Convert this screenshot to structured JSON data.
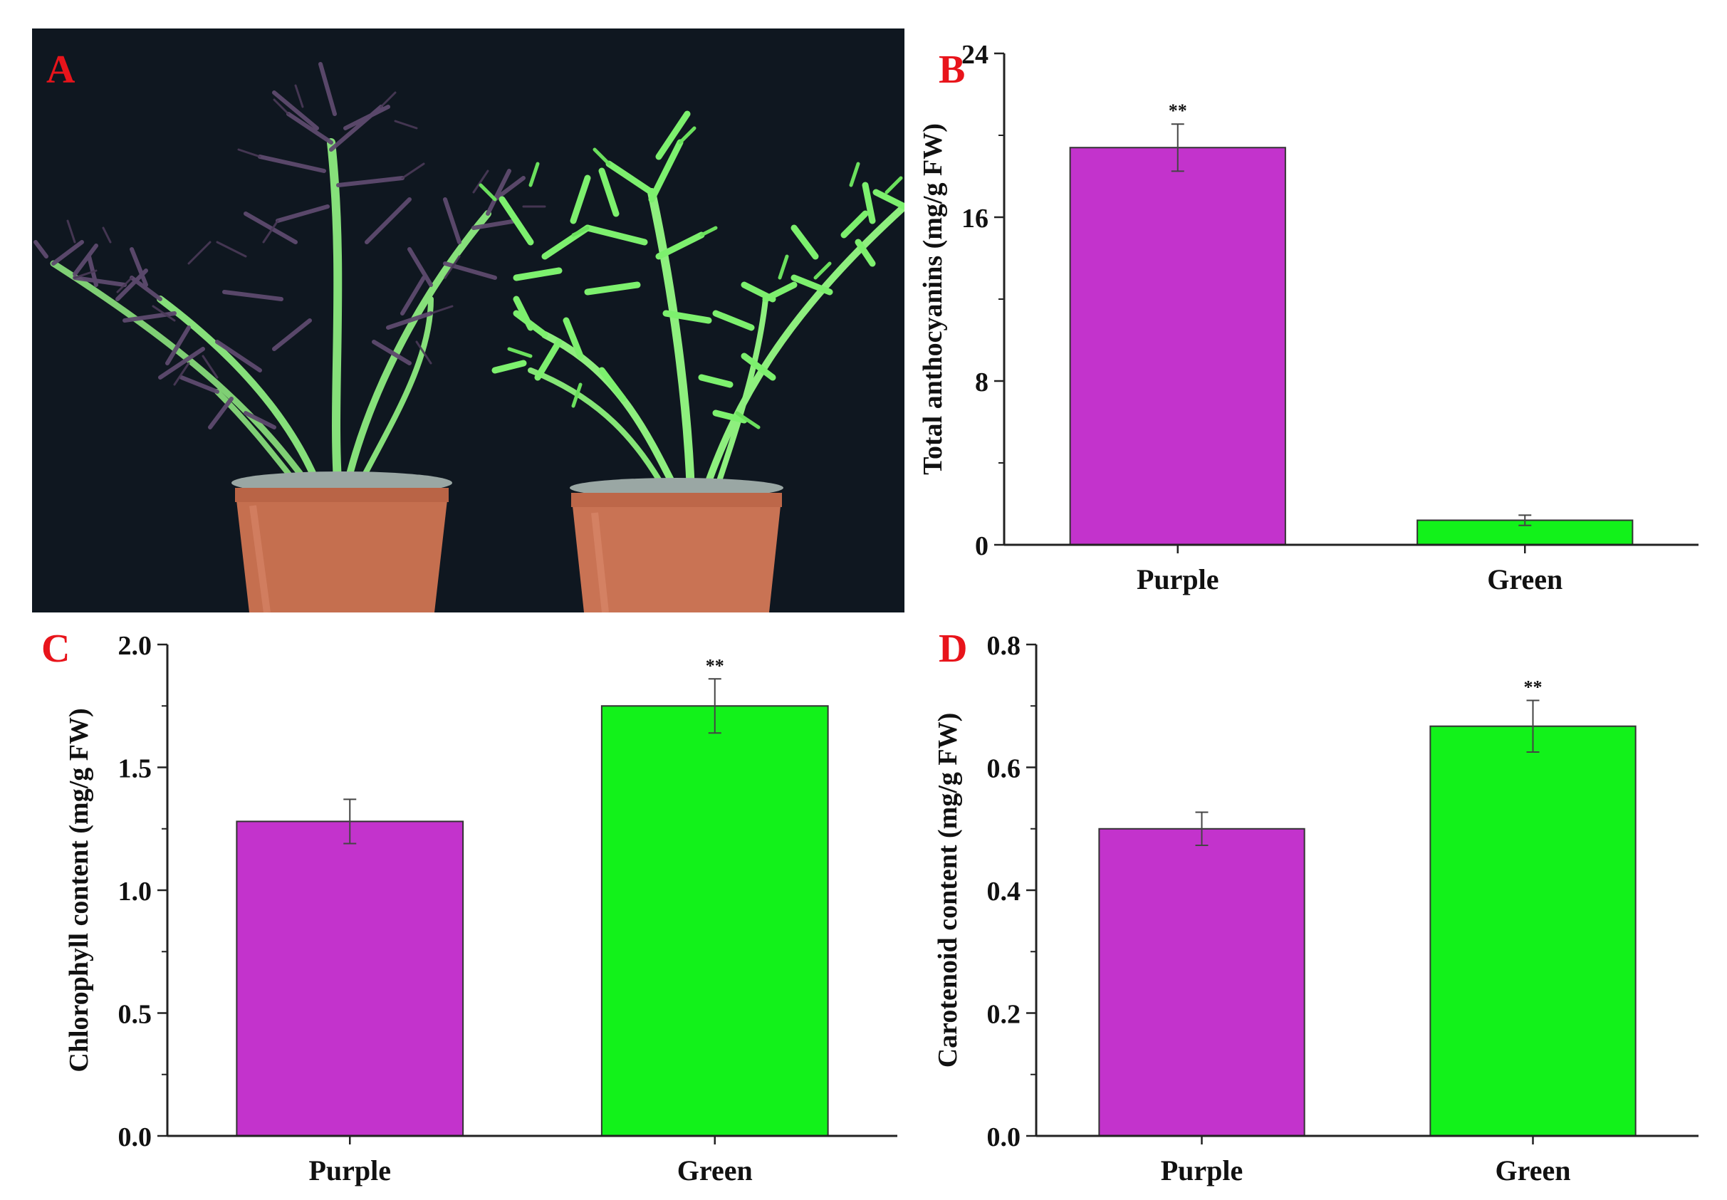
{
  "panels": {
    "a": {
      "label": "A"
    },
    "b": {
      "label": "B"
    },
    "c": {
      "label": "C"
    },
    "d": {
      "label": "D"
    }
  },
  "colors": {
    "purple_bar": "#c333cc",
    "green_bar": "#12f21a",
    "label_red": "#e8141b"
  },
  "chart_data": [
    {
      "id": "b",
      "type": "bar",
      "categories": [
        "Purple",
        "Green"
      ],
      "values": [
        19.4,
        1.2
      ],
      "errors": [
        1.15,
        0.25
      ],
      "significance": [
        "**",
        ""
      ],
      "xlabel": "",
      "ylabel": "Total anthocyanins (mg/g FW)",
      "ylim": [
        0,
        24
      ],
      "yticks": [
        0,
        8,
        16,
        24
      ],
      "yticklabels": [
        "0",
        "8",
        "16",
        "24"
      ]
    },
    {
      "id": "c",
      "type": "bar",
      "categories": [
        "Purple",
        "Green"
      ],
      "values": [
        1.28,
        1.75
      ],
      "errors": [
        0.09,
        0.11
      ],
      "significance": [
        "",
        "**"
      ],
      "xlabel": "",
      "ylabel": "Chlorophyll content (mg/g FW)",
      "ylim": [
        0,
        2.0
      ],
      "yticks": [
        0,
        0.5,
        1.0,
        1.5,
        2.0
      ],
      "yticklabels": [
        "0.0",
        "0.5",
        "1.0",
        "1.5",
        "2.0"
      ]
    },
    {
      "id": "d",
      "type": "bar",
      "categories": [
        "Purple",
        "Green"
      ],
      "values": [
        0.5,
        0.667
      ],
      "errors": [
        0.027,
        0.042
      ],
      "significance": [
        "",
        "**"
      ],
      "xlabel": "",
      "ylabel": "Carotenoid content (mg/g FW)",
      "ylim": [
        0,
        0.8
      ],
      "yticks": [
        0,
        0.2,
        0.4,
        0.6,
        0.8
      ],
      "yticklabels": [
        "0.0",
        "0.2",
        "0.4",
        "0.6",
        "0.8"
      ]
    }
  ]
}
